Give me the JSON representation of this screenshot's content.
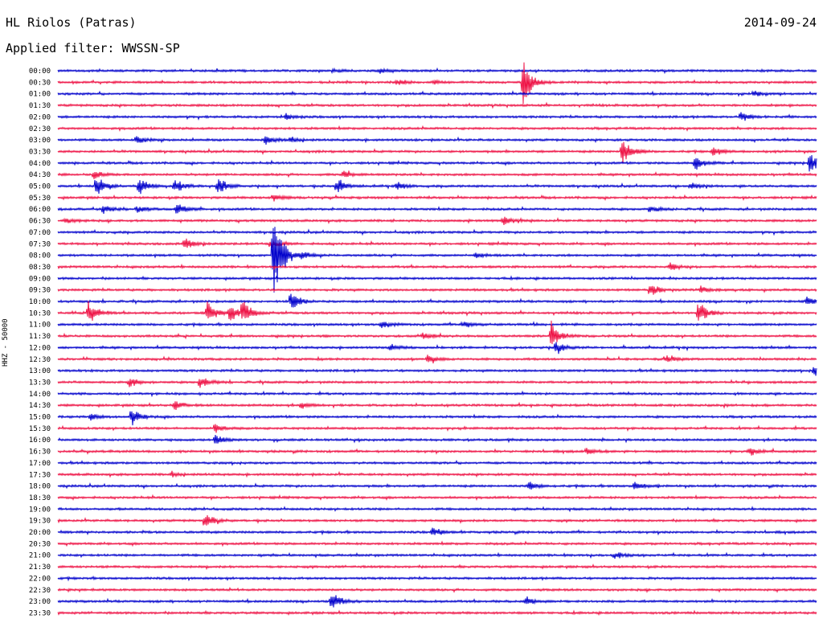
{
  "header": {
    "title": "HL Riolos (Patras)",
    "date": "2014-09-24",
    "filter_label": "Applied filter:",
    "filter_value": "WWSSN-SP"
  },
  "chart_data": {
    "type": "line",
    "title": "HL Riolos (Patras)",
    "ylabel": "HHZ - 50000",
    "colors": [
      "#0000cc",
      "#ee1144"
    ],
    "tick_labels": [
      "00:00",
      "00:30",
      "01:00",
      "01:30",
      "02:00",
      "02:30",
      "03:00",
      "03:30",
      "04:00",
      "04:30",
      "05:00",
      "05:30",
      "06:00",
      "06:30",
      "07:00",
      "07:30",
      "08:00",
      "08:30",
      "09:00",
      "09:30",
      "10:00",
      "10:30",
      "11:00",
      "11:30",
      "12:00",
      "12:30",
      "13:00",
      "13:30",
      "14:00",
      "14:30",
      "15:00",
      "15:30",
      "16:00",
      "16:30",
      "17:00",
      "17:30",
      "18:00",
      "18:30",
      "19:00",
      "19:30",
      "20:00",
      "20:30",
      "21:00",
      "21:30",
      "22:00",
      "22:30",
      "23:00",
      "23:30"
    ],
    "time_axis": "minutes within each 30-minute row, 0 to 30",
    "events": [
      {
        "row": "00:00",
        "minute": 12.7,
        "amp": 0.35
      },
      {
        "row": "00:00",
        "minute": 10.9,
        "amp": 0.15
      },
      {
        "row": "00:30",
        "minute": 18.4,
        "amp": 2.6
      },
      {
        "row": "00:30",
        "minute": 13.4,
        "amp": 0.25
      },
      {
        "row": "00:30",
        "minute": 14.9,
        "amp": 0.2
      },
      {
        "row": "01:00",
        "minute": 27.5,
        "amp": 0.4
      },
      {
        "row": "02:00",
        "minute": 9.0,
        "amp": 0.3
      },
      {
        "row": "02:00",
        "minute": 27.0,
        "amp": 0.6
      },
      {
        "row": "03:00",
        "minute": 3.1,
        "amp": 0.5
      },
      {
        "row": "03:00",
        "minute": 8.2,
        "amp": 0.5
      },
      {
        "row": "03:00",
        "minute": 9.2,
        "amp": 0.35
      },
      {
        "row": "03:30",
        "minute": 22.3,
        "amp": 1.6
      },
      {
        "row": "03:30",
        "minute": 25.9,
        "amp": 0.5
      },
      {
        "row": "04:00",
        "minute": 25.2,
        "amp": 0.9
      },
      {
        "row": "04:00",
        "minute": 29.7,
        "amp": 1.2
      },
      {
        "row": "04:30",
        "minute": 1.4,
        "amp": 0.5
      },
      {
        "row": "04:30",
        "minute": 11.3,
        "amp": 0.4
      },
      {
        "row": "05:00",
        "minute": 1.5,
        "amp": 1.3
      },
      {
        "row": "05:00",
        "minute": 3.2,
        "amp": 0.9
      },
      {
        "row": "05:00",
        "minute": 4.6,
        "amp": 0.8
      },
      {
        "row": "05:00",
        "minute": 6.3,
        "amp": 0.9
      },
      {
        "row": "05:00",
        "minute": 11.0,
        "amp": 0.7
      },
      {
        "row": "05:00",
        "minute": 13.4,
        "amp": 0.4
      },
      {
        "row": "05:00",
        "minute": 25.0,
        "amp": 0.4
      },
      {
        "row": "05:30",
        "minute": 8.5,
        "amp": 0.4
      },
      {
        "row": "06:00",
        "minute": 1.8,
        "amp": 0.5
      },
      {
        "row": "06:00",
        "minute": 3.1,
        "amp": 0.4
      },
      {
        "row": "06:00",
        "minute": 4.7,
        "amp": 0.8
      },
      {
        "row": "06:00",
        "minute": 23.4,
        "amp": 0.4
      },
      {
        "row": "06:30",
        "minute": 0.3,
        "amp": 0.4
      },
      {
        "row": "06:30",
        "minute": 17.6,
        "amp": 0.4
      },
      {
        "row": "07:30",
        "minute": 5.0,
        "amp": 0.6
      },
      {
        "row": "07:30",
        "minute": 8.4,
        "amp": 0.4
      },
      {
        "row": "08:00",
        "minute": 8.5,
        "amp": 6.0
      },
      {
        "row": "08:00",
        "minute": 9.6,
        "amp": 0.6
      },
      {
        "row": "08:00",
        "minute": 16.5,
        "amp": 0.3
      },
      {
        "row": "08:30",
        "minute": 24.2,
        "amp": 0.5
      },
      {
        "row": "09:30",
        "minute": 23.4,
        "amp": 0.7
      },
      {
        "row": "09:30",
        "minute": 25.4,
        "amp": 0.4
      },
      {
        "row": "10:00",
        "minute": 9.2,
        "amp": 1.1
      },
      {
        "row": "10:00",
        "minute": 29.6,
        "amp": 0.5
      },
      {
        "row": "10:30",
        "minute": 1.2,
        "amp": 1.3
      },
      {
        "row": "10:30",
        "minute": 5.9,
        "amp": 1.2
      },
      {
        "row": "10:30",
        "minute": 6.8,
        "amp": 1.1
      },
      {
        "row": "10:30",
        "minute": 7.3,
        "amp": 1.2
      },
      {
        "row": "10:30",
        "minute": 25.3,
        "amp": 1.4
      },
      {
        "row": "11:00",
        "minute": 12.8,
        "amp": 0.4
      },
      {
        "row": "11:00",
        "minute": 16.0,
        "amp": 0.4
      },
      {
        "row": "11:30",
        "minute": 19.5,
        "amp": 1.4
      },
      {
        "row": "11:30",
        "minute": 14.4,
        "amp": 0.4
      },
      {
        "row": "12:00",
        "minute": 13.1,
        "amp": 0.5
      },
      {
        "row": "12:00",
        "minute": 19.7,
        "amp": 0.6
      },
      {
        "row": "12:30",
        "minute": 14.6,
        "amp": 0.5
      },
      {
        "row": "12:30",
        "minute": 24.0,
        "amp": 0.4
      },
      {
        "row": "13:00",
        "minute": 29.9,
        "amp": 0.6
      },
      {
        "row": "13:30",
        "minute": 2.8,
        "amp": 0.5
      },
      {
        "row": "13:30",
        "minute": 5.6,
        "amp": 0.7
      },
      {
        "row": "14:30",
        "minute": 4.6,
        "amp": 0.5
      },
      {
        "row": "14:30",
        "minute": 9.6,
        "amp": 0.4
      },
      {
        "row": "15:00",
        "minute": 2.9,
        "amp": 1.0
      },
      {
        "row": "15:00",
        "minute": 1.3,
        "amp": 0.3
      },
      {
        "row": "15:30",
        "minute": 6.2,
        "amp": 0.5
      },
      {
        "row": "16:00",
        "minute": 6.2,
        "amp": 0.6
      },
      {
        "row": "16:30",
        "minute": 20.9,
        "amp": 0.4
      },
      {
        "row": "16:30",
        "minute": 27.3,
        "amp": 0.5
      },
      {
        "row": "17:30",
        "minute": 4.5,
        "amp": 0.3
      },
      {
        "row": "18:00",
        "minute": 18.6,
        "amp": 0.4
      },
      {
        "row": "18:00",
        "minute": 22.8,
        "amp": 0.5
      },
      {
        "row": "19:30",
        "minute": 5.8,
        "amp": 0.8
      },
      {
        "row": "20:00",
        "minute": 14.8,
        "amp": 0.5
      },
      {
        "row": "21:00",
        "minute": 22.0,
        "amp": 0.4
      },
      {
        "row": "23:00",
        "minute": 10.8,
        "amp": 1.2
      },
      {
        "row": "23:00",
        "minute": 18.5,
        "amp": 0.5
      }
    ]
  }
}
